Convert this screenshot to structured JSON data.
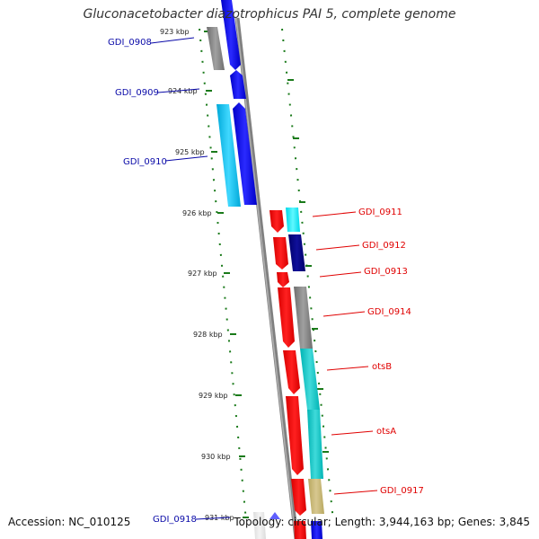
{
  "title": "Gluconacetobacter diazotrophicus PAI 5, complete genome",
  "footer": {
    "accession": "Accession: NC_010125",
    "topology": "Topology: circular; Length: 3,944,163 bp; Genes: 3,845"
  },
  "colors": {
    "forward_label": "#0a0aa8",
    "reverse_label": "#e00000",
    "tick": "#0a6a0a",
    "backbone": "#808080"
  },
  "ticks": [
    {
      "label": "923 kbp"
    },
    {
      "label": "924 kbp"
    },
    {
      "label": "925 kbp"
    },
    {
      "label": "926 kbp"
    },
    {
      "label": "927 kbp"
    },
    {
      "label": "928 kbp"
    },
    {
      "label": "929 kbp"
    },
    {
      "label": "930 kbp"
    },
    {
      "label": "931 kbp"
    }
  ],
  "genes": [
    {
      "name": "GDI_0908",
      "strand": "forward"
    },
    {
      "name": "GDI_0909",
      "strand": "forward"
    },
    {
      "name": "GDI_0910",
      "strand": "forward"
    },
    {
      "name": "GDI_0911",
      "strand": "reverse"
    },
    {
      "name": "GDI_0912",
      "strand": "reverse"
    },
    {
      "name": "GDI_0913",
      "strand": "reverse"
    },
    {
      "name": "GDI_0914",
      "strand": "reverse"
    },
    {
      "name": "otsB",
      "strand": "reverse"
    },
    {
      "name": "otsA",
      "strand": "reverse"
    },
    {
      "name": "GDI_0917",
      "strand": "reverse"
    },
    {
      "name": "GDI_0918",
      "strand": "forward"
    }
  ]
}
